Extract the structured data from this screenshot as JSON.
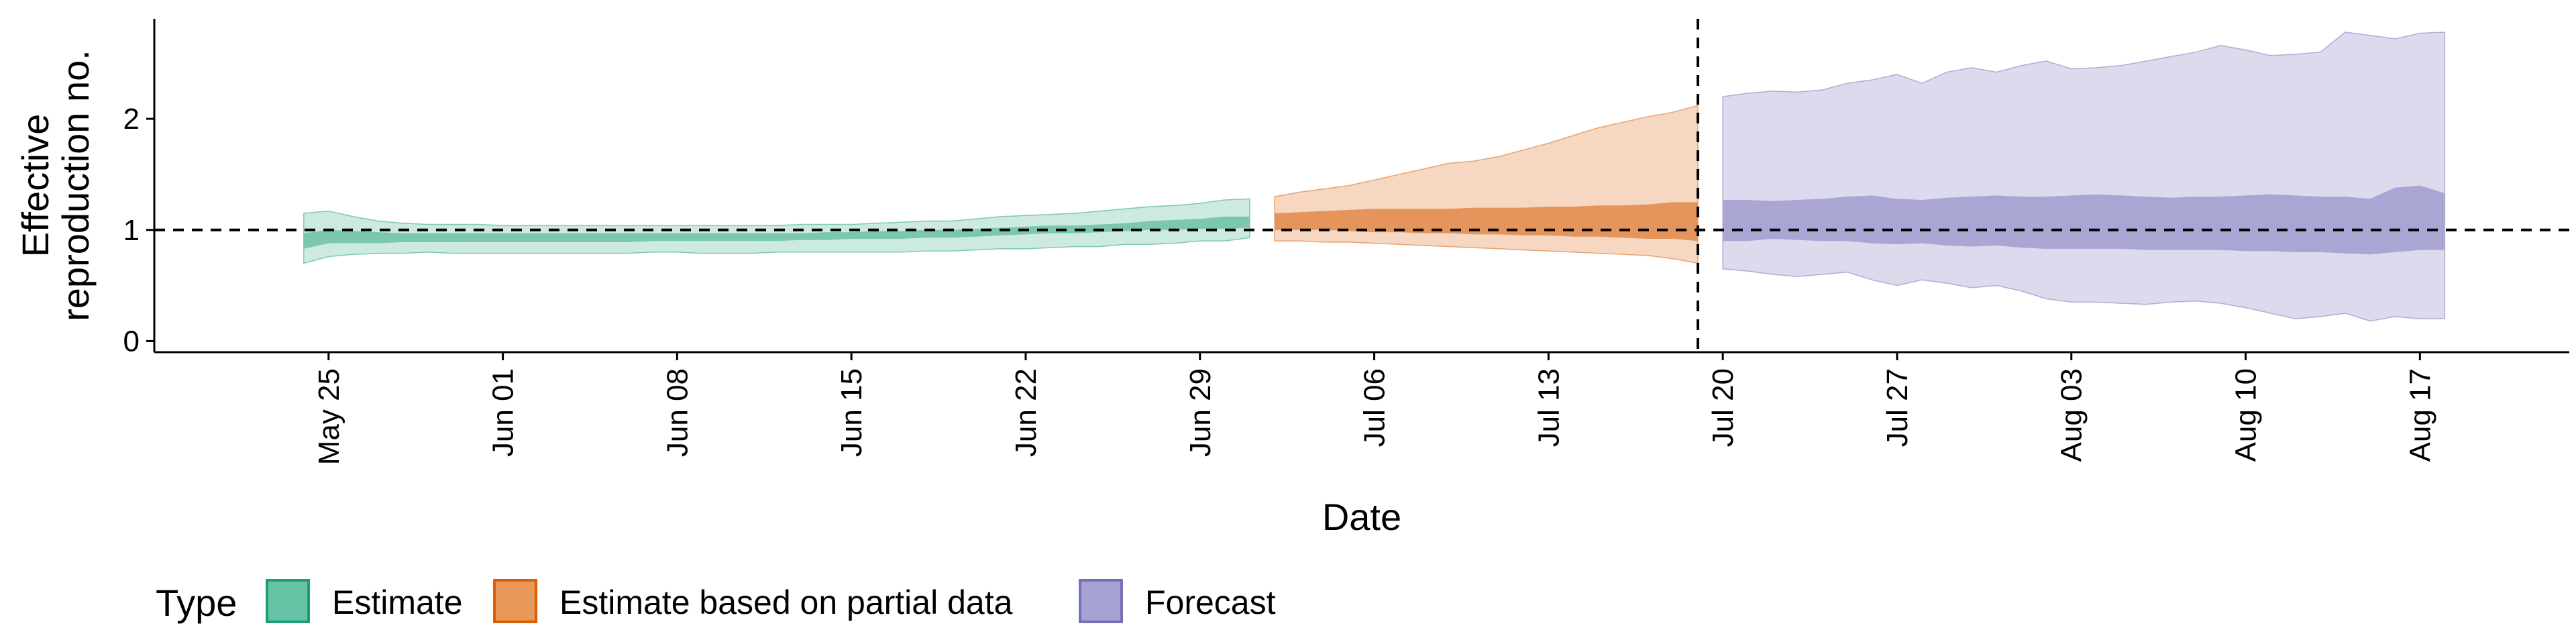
{
  "chart_data": {
    "type": "area",
    "xlabel": "Date",
    "ylabel": "Effective reproduction no.",
    "ylim": [
      -0.1,
      2.9
    ],
    "xlim": [
      "2020-05-18",
      "2020-08-23"
    ],
    "yticks": [
      0,
      1,
      2
    ],
    "xtick_labels": [
      "May 25",
      "Jun 01",
      "Jun 08",
      "Jun 15",
      "Jun 22",
      "Jun 29",
      "Jul 06",
      "Jul 13",
      "Jul 20",
      "Jul 27",
      "Aug 03",
      "Aug 10",
      "Aug 17"
    ],
    "xticks": [
      "2020-05-25",
      "2020-06-01",
      "2020-06-08",
      "2020-06-15",
      "2020-06-22",
      "2020-06-29",
      "2020-07-06",
      "2020-07-13",
      "2020-07-20",
      "2020-07-27",
      "2020-08-03",
      "2020-08-10",
      "2020-08-17"
    ],
    "reference_line": {
      "y": 1,
      "style": "dashed"
    },
    "vertical_line": {
      "x": "2020-07-19",
      "style": "dashed"
    },
    "grid": false,
    "legend": {
      "title": "Type",
      "position": "bottom-left",
      "items": [
        {
          "label": "Estimate",
          "fill": "#66c2a5",
          "stroke": "#1b9e77"
        },
        {
          "label": "Estimate based on partial data",
          "fill": "#e8995a",
          "stroke": "#d95f02"
        },
        {
          "label": "Forecast",
          "fill": "#a6a3d4",
          "stroke": "#7570b3"
        }
      ]
    },
    "series": [
      {
        "name": "Estimate",
        "color": "#1b9e77",
        "outer_fill": "#cdeadf",
        "inner_fill": "#7cc8ad",
        "x": [
          "2020-05-24",
          "2020-05-25",
          "2020-05-26",
          "2020-05-27",
          "2020-05-28",
          "2020-05-29",
          "2020-05-30",
          "2020-05-31",
          "2020-06-01",
          "2020-06-02",
          "2020-06-03",
          "2020-06-04",
          "2020-06-05",
          "2020-06-06",
          "2020-06-07",
          "2020-06-08",
          "2020-06-09",
          "2020-06-10",
          "2020-06-11",
          "2020-06-12",
          "2020-06-13",
          "2020-06-14",
          "2020-06-15",
          "2020-06-16",
          "2020-06-17",
          "2020-06-18",
          "2020-06-19",
          "2020-06-20",
          "2020-06-21",
          "2020-06-22",
          "2020-06-23",
          "2020-06-24",
          "2020-06-25",
          "2020-06-26",
          "2020-06-27",
          "2020-06-28",
          "2020-06-29",
          "2020-06-30",
          "2020-07-01"
        ],
        "lower_90": [
          0.7,
          0.76,
          0.78,
          0.79,
          0.79,
          0.8,
          0.79,
          0.79,
          0.79,
          0.79,
          0.79,
          0.79,
          0.79,
          0.79,
          0.8,
          0.8,
          0.79,
          0.79,
          0.79,
          0.8,
          0.8,
          0.8,
          0.8,
          0.8,
          0.8,
          0.81,
          0.81,
          0.82,
          0.83,
          0.83,
          0.84,
          0.85,
          0.85,
          0.87,
          0.87,
          0.88,
          0.9,
          0.9,
          0.93
        ],
        "lower_50": [
          0.83,
          0.88,
          0.88,
          0.88,
          0.89,
          0.89,
          0.89,
          0.89,
          0.89,
          0.89,
          0.89,
          0.89,
          0.89,
          0.89,
          0.9,
          0.9,
          0.9,
          0.9,
          0.9,
          0.9,
          0.91,
          0.91,
          0.92,
          0.92,
          0.92,
          0.93,
          0.93,
          0.94,
          0.95,
          0.96,
          0.97,
          0.97,
          0.98,
          0.99,
          1.0,
          1.0,
          1.01,
          1.01,
          1.02
        ],
        "upper_50": [
          0.97,
          1.0,
          0.99,
          0.98,
          0.97,
          0.97,
          0.97,
          0.97,
          0.97,
          0.97,
          0.97,
          0.97,
          0.97,
          0.97,
          0.97,
          0.97,
          0.97,
          0.97,
          0.97,
          0.97,
          0.97,
          0.98,
          0.98,
          0.99,
          0.99,
          1.0,
          1.0,
          1.01,
          1.02,
          1.03,
          1.04,
          1.04,
          1.05,
          1.06,
          1.08,
          1.09,
          1.1,
          1.12,
          1.12
        ],
        "upper_90": [
          1.15,
          1.17,
          1.12,
          1.08,
          1.06,
          1.05,
          1.05,
          1.05,
          1.04,
          1.04,
          1.04,
          1.04,
          1.04,
          1.04,
          1.04,
          1.04,
          1.04,
          1.04,
          1.04,
          1.04,
          1.05,
          1.05,
          1.05,
          1.06,
          1.07,
          1.08,
          1.08,
          1.1,
          1.12,
          1.13,
          1.14,
          1.15,
          1.17,
          1.19,
          1.21,
          1.22,
          1.24,
          1.27,
          1.28
        ]
      },
      {
        "name": "Estimate based on partial data",
        "color": "#d95f02",
        "outer_fill": "#f5d7c2",
        "inner_fill": "#e5955c",
        "x": [
          "2020-07-02",
          "2020-07-03",
          "2020-07-04",
          "2020-07-05",
          "2020-07-06",
          "2020-07-07",
          "2020-07-08",
          "2020-07-09",
          "2020-07-10",
          "2020-07-11",
          "2020-07-12",
          "2020-07-13",
          "2020-07-14",
          "2020-07-15",
          "2020-07-16",
          "2020-07-17",
          "2020-07-18",
          "2020-07-19"
        ],
        "lower_90": [
          0.9,
          0.9,
          0.89,
          0.89,
          0.88,
          0.87,
          0.86,
          0.85,
          0.84,
          0.83,
          0.82,
          0.81,
          0.8,
          0.79,
          0.78,
          0.77,
          0.74,
          0.7
        ],
        "lower_50": [
          1.0,
          1.0,
          1.0,
          0.99,
          0.98,
          0.98,
          0.97,
          0.97,
          0.96,
          0.96,
          0.95,
          0.95,
          0.94,
          0.94,
          0.93,
          0.92,
          0.92,
          0.9
        ],
        "upper_50": [
          1.15,
          1.16,
          1.17,
          1.18,
          1.19,
          1.19,
          1.19,
          1.19,
          1.2,
          1.2,
          1.2,
          1.21,
          1.21,
          1.22,
          1.22,
          1.23,
          1.25,
          1.25
        ],
        "upper_90": [
          1.3,
          1.34,
          1.37,
          1.4,
          1.45,
          1.5,
          1.55,
          1.6,
          1.62,
          1.66,
          1.72,
          1.78,
          1.85,
          1.92,
          1.97,
          2.02,
          2.06,
          2.12
        ]
      },
      {
        "name": "Forecast",
        "color": "#7570b3",
        "outer_fill": "#dcdaec",
        "inner_fill": "#aaa6d4",
        "x": [
          "2020-07-20",
          "2020-07-21",
          "2020-07-22",
          "2020-07-23",
          "2020-07-24",
          "2020-07-25",
          "2020-07-26",
          "2020-07-27",
          "2020-07-28",
          "2020-07-29",
          "2020-07-30",
          "2020-07-31",
          "2020-08-01",
          "2020-08-02",
          "2020-08-03",
          "2020-08-04",
          "2020-08-05",
          "2020-08-06",
          "2020-08-07",
          "2020-08-08",
          "2020-08-09",
          "2020-08-10",
          "2020-08-11",
          "2020-08-12",
          "2020-08-13",
          "2020-08-14",
          "2020-08-15",
          "2020-08-16",
          "2020-08-17",
          "2020-08-18"
        ],
        "lower_90": [
          0.65,
          0.63,
          0.6,
          0.58,
          0.6,
          0.62,
          0.55,
          0.5,
          0.55,
          0.52,
          0.48,
          0.5,
          0.45,
          0.38,
          0.35,
          0.35,
          0.34,
          0.33,
          0.35,
          0.36,
          0.34,
          0.3,
          0.25,
          0.2,
          0.22,
          0.25,
          0.18,
          0.22,
          0.2,
          0.2
        ],
        "lower_50": [
          0.9,
          0.9,
          0.92,
          0.91,
          0.9,
          0.9,
          0.88,
          0.87,
          0.88,
          0.86,
          0.85,
          0.86,
          0.84,
          0.83,
          0.83,
          0.83,
          0.83,
          0.82,
          0.82,
          0.82,
          0.82,
          0.81,
          0.81,
          0.8,
          0.8,
          0.79,
          0.78,
          0.8,
          0.82,
          0.82
        ],
        "upper_50": [
          1.27,
          1.27,
          1.26,
          1.27,
          1.28,
          1.3,
          1.31,
          1.28,
          1.27,
          1.29,
          1.3,
          1.31,
          1.3,
          1.3,
          1.31,
          1.32,
          1.31,
          1.3,
          1.29,
          1.3,
          1.3,
          1.31,
          1.32,
          1.31,
          1.3,
          1.3,
          1.28,
          1.38,
          1.4,
          1.33
        ],
        "upper_90": [
          2.2,
          2.23,
          2.25,
          2.24,
          2.26,
          2.32,
          2.35,
          2.4,
          2.32,
          2.42,
          2.46,
          2.42,
          2.48,
          2.52,
          2.45,
          2.46,
          2.48,
          2.52,
          2.56,
          2.6,
          2.66,
          2.62,
          2.57,
          2.58,
          2.6,
          2.78,
          2.75,
          2.72,
          2.77,
          2.78
        ]
      }
    ]
  }
}
